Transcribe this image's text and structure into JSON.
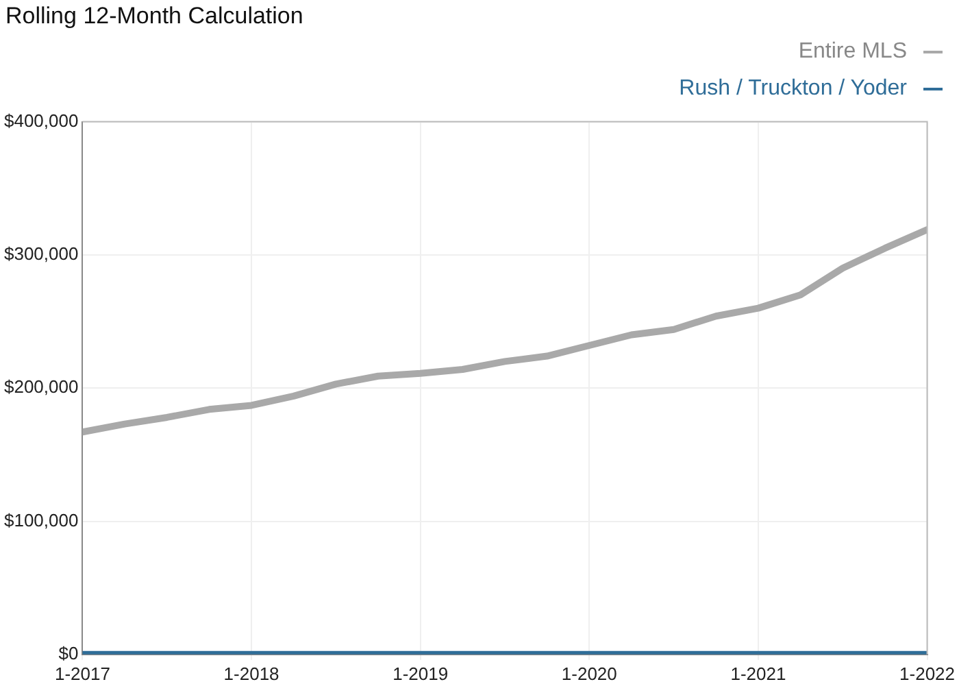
{
  "chart_data": {
    "type": "line",
    "title": "Rolling 12-Month Calculation",
    "x": [
      "2017-01",
      "2017-04",
      "2017-07",
      "2017-10",
      "2018-01",
      "2018-04",
      "2018-07",
      "2018-10",
      "2019-01",
      "2019-04",
      "2019-07",
      "2019-10",
      "2020-01",
      "2020-04",
      "2020-07",
      "2020-10",
      "2021-01",
      "2021-04",
      "2021-07",
      "2021-10",
      "2022-01"
    ],
    "series": [
      {
        "name": "Entire MLS",
        "color": "#a9a9a9",
        "values": [
          167000,
          173000,
          178000,
          184000,
          187000,
          194000,
          203000,
          209000,
          211000,
          214000,
          220000,
          224000,
          232000,
          240000,
          244000,
          254000,
          260000,
          270000,
          290000,
          305000,
          319000
        ]
      },
      {
        "name": "Rush / Truckton / Yoder",
        "color": "#2f6d98",
        "values": [
          0,
          0,
          0,
          0,
          0,
          0,
          0,
          0,
          0,
          0,
          0,
          0,
          0,
          0,
          0,
          0,
          0,
          0,
          0,
          0,
          0
        ]
      }
    ],
    "xlim": [
      "2017-01",
      "2022-01"
    ],
    "xticks": [
      {
        "value": "2017-01",
        "label": "1-2017"
      },
      {
        "value": "2018-01",
        "label": "1-2018"
      },
      {
        "value": "2019-01",
        "label": "1-2019"
      },
      {
        "value": "2020-01",
        "label": "1-2020"
      },
      {
        "value": "2021-01",
        "label": "1-2021"
      },
      {
        "value": "2022-01",
        "label": "1-2022"
      }
    ],
    "ylim": [
      0,
      400000
    ],
    "yticks": [
      {
        "value": 0,
        "label": "$0"
      },
      {
        "value": 100000,
        "label": "$100,000"
      },
      {
        "value": 200000,
        "label": "$200,000"
      },
      {
        "value": 300000,
        "label": "$300,000"
      },
      {
        "value": 400000,
        "label": "$400,000"
      }
    ],
    "grid": true,
    "legend": "top right",
    "marker": "none",
    "line_style": "solid"
  }
}
